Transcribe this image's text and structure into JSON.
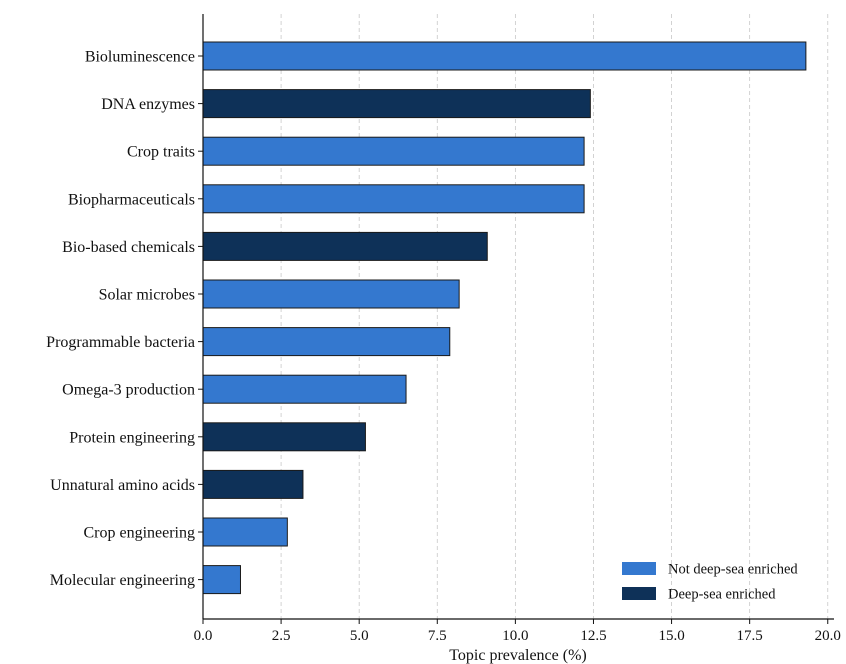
{
  "chart_data": {
    "type": "bar",
    "orientation": "horizontal",
    "title": "",
    "xlabel": "Topic prevalence (%)",
    "ylabel": "",
    "xlim": [
      0,
      20.2
    ],
    "xticks": [
      0.0,
      2.5,
      5.0,
      7.5,
      10.0,
      12.5,
      15.0,
      17.5,
      20.0
    ],
    "xtick_labels": [
      "0.0",
      "2.5",
      "5.0",
      "7.5",
      "10.0",
      "12.5",
      "15.0",
      "17.5",
      "20.0"
    ],
    "grid": "vertical dashed",
    "categories": [
      "Bioluminescence",
      "DNA enzymes",
      "Crop traits",
      "Biopharmaceuticals",
      "Bio-based chemicals",
      "Solar microbes",
      "Programmable bacteria",
      "Omega-3 production",
      "Protein engineering",
      "Unnatural amino acids",
      "Crop engineering",
      "Molecular engineering"
    ],
    "values": [
      19.3,
      12.4,
      12.2,
      12.2,
      9.1,
      8.2,
      7.9,
      6.5,
      5.2,
      3.2,
      2.7,
      1.2
    ],
    "group": [
      "Not deep-sea enriched",
      "Deep-sea enriched",
      "Not deep-sea enriched",
      "Not deep-sea enriched",
      "Deep-sea enriched",
      "Not deep-sea enriched",
      "Not deep-sea enriched",
      "Not deep-sea enriched",
      "Deep-sea enriched",
      "Deep-sea enriched",
      "Not deep-sea enriched",
      "Not deep-sea enriched"
    ],
    "legend": {
      "placement": "lower-right",
      "entries": [
        {
          "label": "Not deep-sea enriched",
          "color": "#3478cf"
        },
        {
          "label": "Deep-sea enriched",
          "color": "#0e3158"
        }
      ]
    },
    "colors": {
      "Not deep-sea enriched": "#3478cf",
      "Deep-sea enriched": "#0e3158"
    }
  }
}
